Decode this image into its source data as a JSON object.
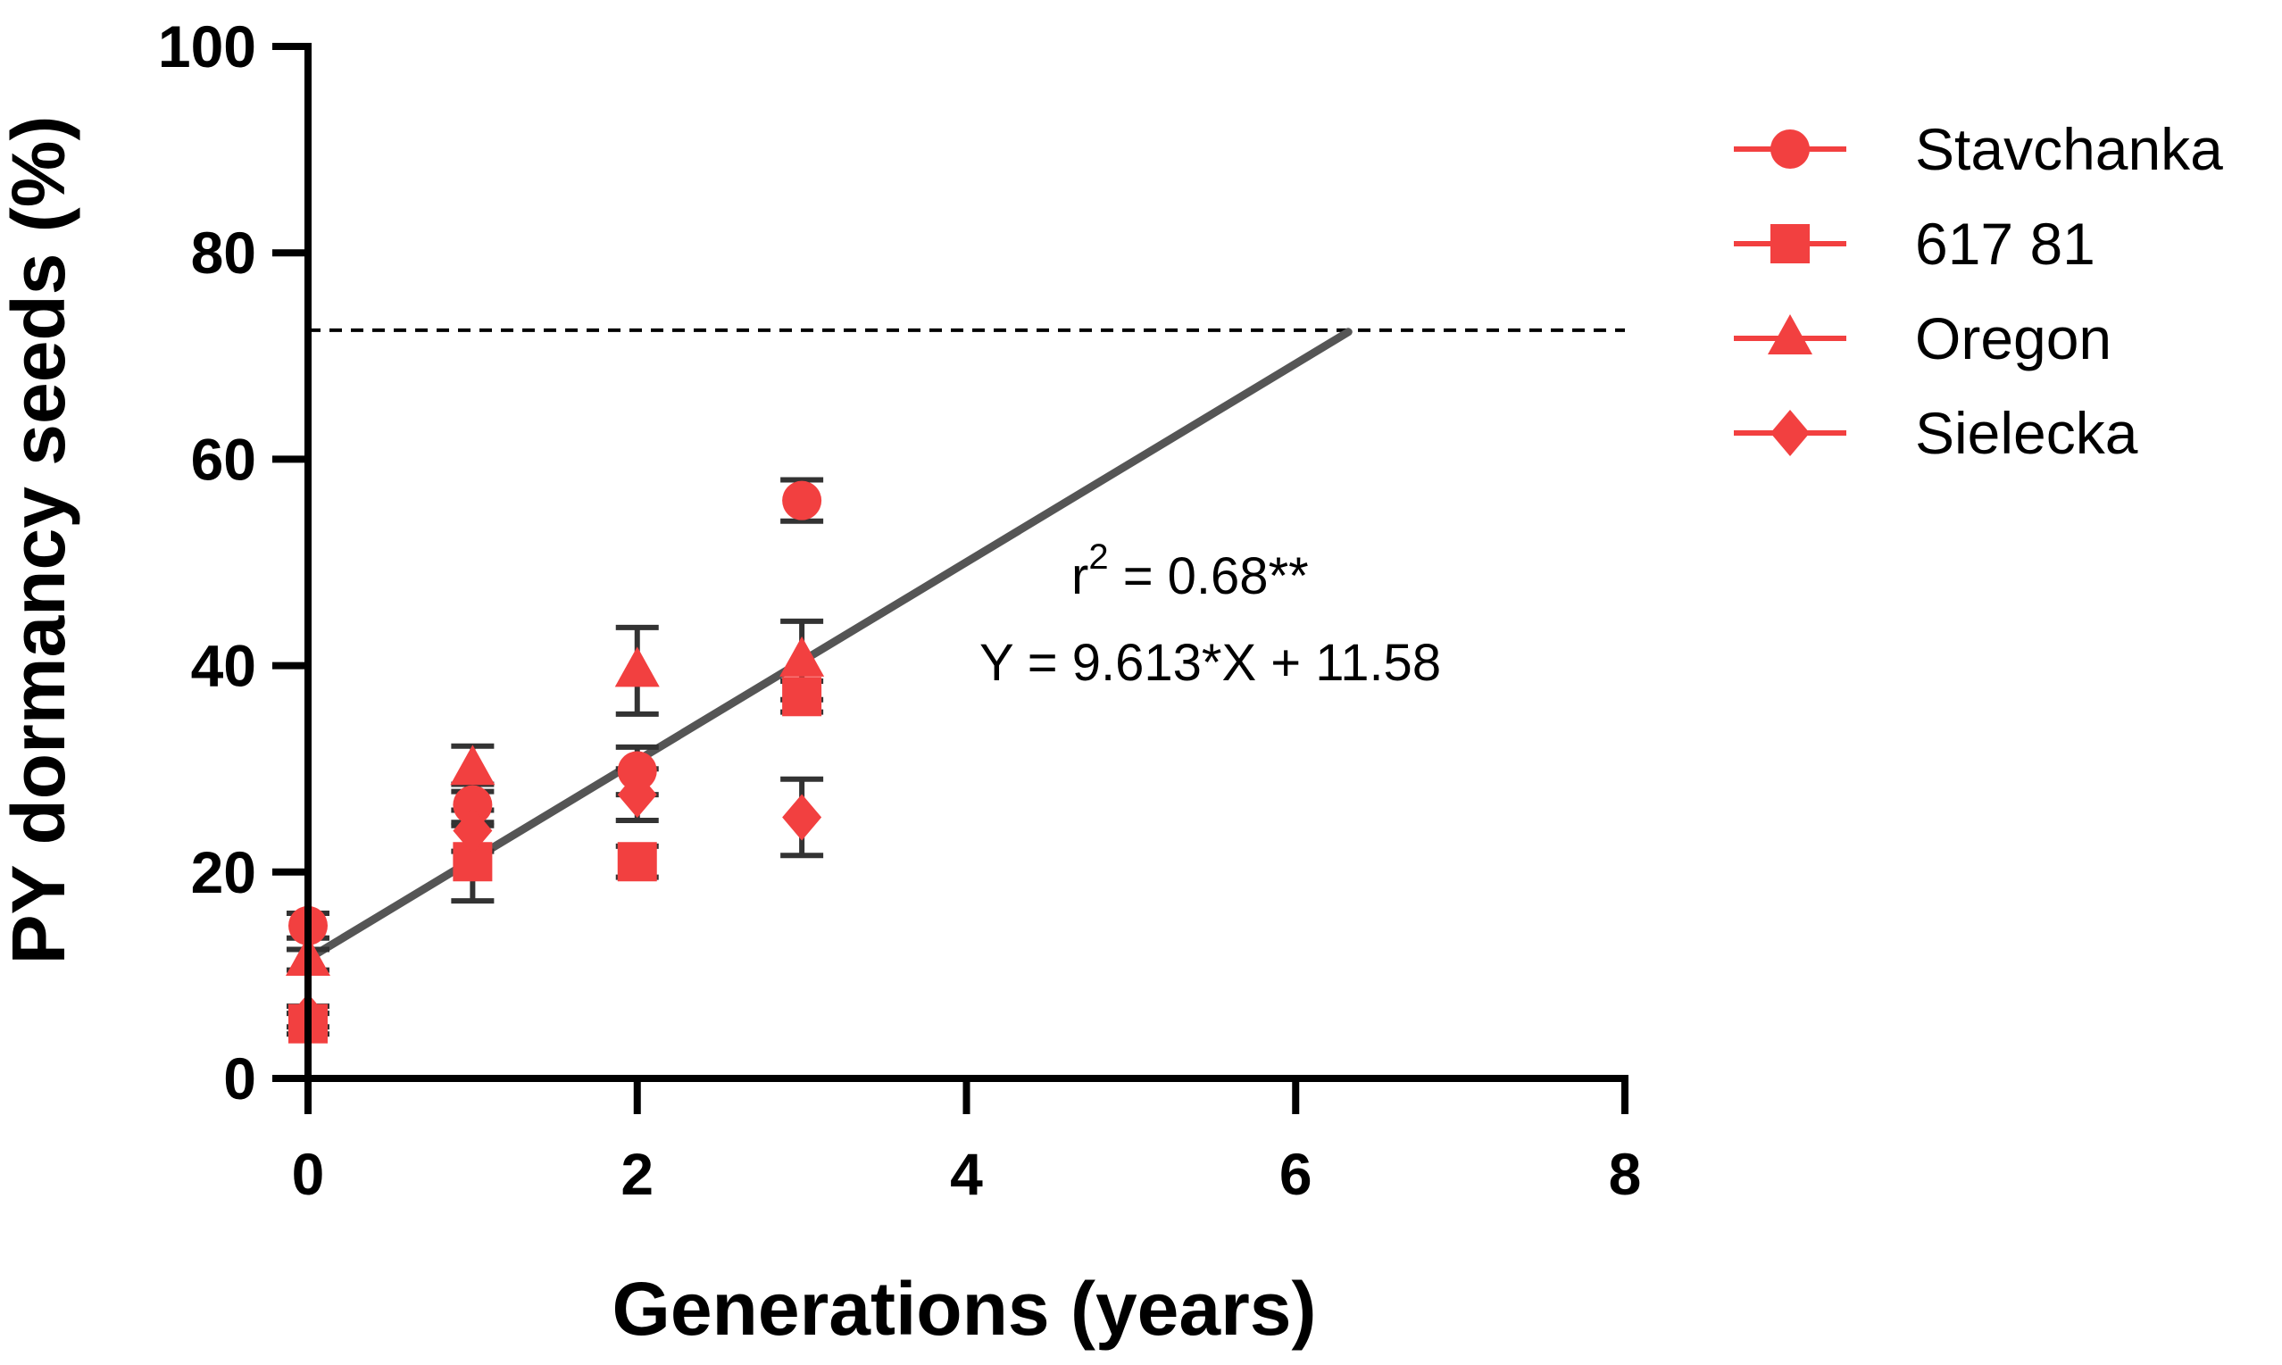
{
  "chart_data": {
    "type": "scatter",
    "xlabel": "Generations (years)",
    "ylabel": "PY dormancy seeds (%)",
    "xlim": [
      0,
      8
    ],
    "ylim": [
      0,
      100
    ],
    "x_ticks": [
      0,
      2,
      4,
      6,
      8
    ],
    "y_ticks": [
      0,
      20,
      40,
      60,
      80,
      100
    ],
    "legend_position": "right",
    "marker_color": "#f24040",
    "line_color": "#555555",
    "error_bar_color": "#333333",
    "series": [
      {
        "name": "Stavchanka",
        "marker": "circle",
        "points": [
          {
            "x": 0,
            "y": 14.8,
            "err": 1.2
          },
          {
            "x": 1,
            "y": 26.5,
            "err": 2.0
          },
          {
            "x": 2,
            "y": 29.8,
            "err": 2.3
          },
          {
            "x": 3,
            "y": 56.0,
            "err": 2.0
          }
        ]
      },
      {
        "name": "617 81",
        "marker": "square",
        "points": [
          {
            "x": 0,
            "y": 5.3,
            "err": 1.0
          },
          {
            "x": 1,
            "y": 21.0,
            "err": 3.8
          },
          {
            "x": 2,
            "y": 21.0,
            "err": 1.5
          },
          {
            "x": 3,
            "y": 37.0,
            "err": 1.5
          }
        ]
      },
      {
        "name": "Oregon",
        "marker": "triangle",
        "points": [
          {
            "x": 0,
            "y": 11.5,
            "err": 1.0
          },
          {
            "x": 1,
            "y": 30.0,
            "err": 2.2
          },
          {
            "x": 2,
            "y": 39.5,
            "err": 4.2
          },
          {
            "x": 3,
            "y": 40.5,
            "err": 3.8
          }
        ]
      },
      {
        "name": "Sielecka",
        "marker": "diamond",
        "points": [
          {
            "x": 0,
            "y": 6.0,
            "err": 1.0
          },
          {
            "x": 1,
            "y": 24.0,
            "err": 2.0
          },
          {
            "x": 2,
            "y": 27.5,
            "err": 2.5
          },
          {
            "x": 3,
            "y": 25.3,
            "err": 3.7
          }
        ]
      }
    ],
    "regression": {
      "slope": 9.613,
      "intercept": 11.58,
      "x_start": 0,
      "x_end": 6.32,
      "r2_prefix": "r",
      "r2_power": "2",
      "r2_value": " = 0.68**",
      "equation": "Y = 9.613*X + 11.58"
    },
    "threshold": {
      "y": 72.5,
      "style": "dashed"
    }
  }
}
